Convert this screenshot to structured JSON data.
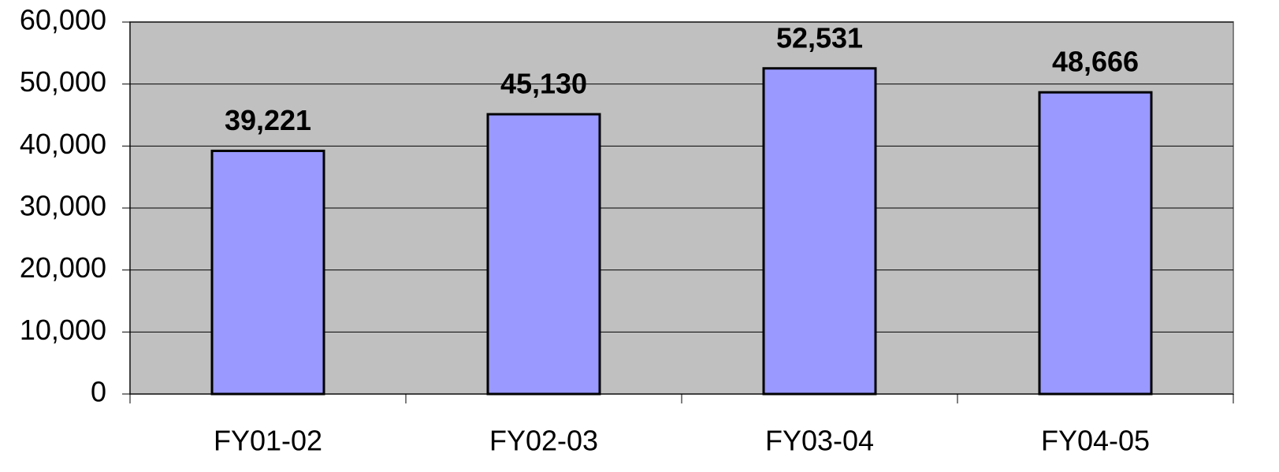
{
  "chart_data": {
    "type": "bar",
    "categories": [
      "FY01-02",
      "FY02-03",
      "FY03-04",
      "FY04-05"
    ],
    "values": [
      39221,
      45130,
      52531,
      48666
    ],
    "value_labels": [
      "39,221",
      "45,130",
      "52,531",
      "48,666"
    ],
    "color": "#9999ff",
    "ylim": [
      0,
      60000
    ],
    "yticks": [
      0,
      {
        "value": 10000,
        "label": "10,000"
      },
      {
        "value": 20000,
        "label": "20,000"
      },
      {
        "value": 30000,
        "label": "30,000"
      },
      {
        "value": 40000,
        "label": "40,000"
      },
      {
        "value": 50000,
        "label": "50,000"
      },
      {
        "value": 60000,
        "label": "60,000"
      }
    ],
    "grid": true
  }
}
